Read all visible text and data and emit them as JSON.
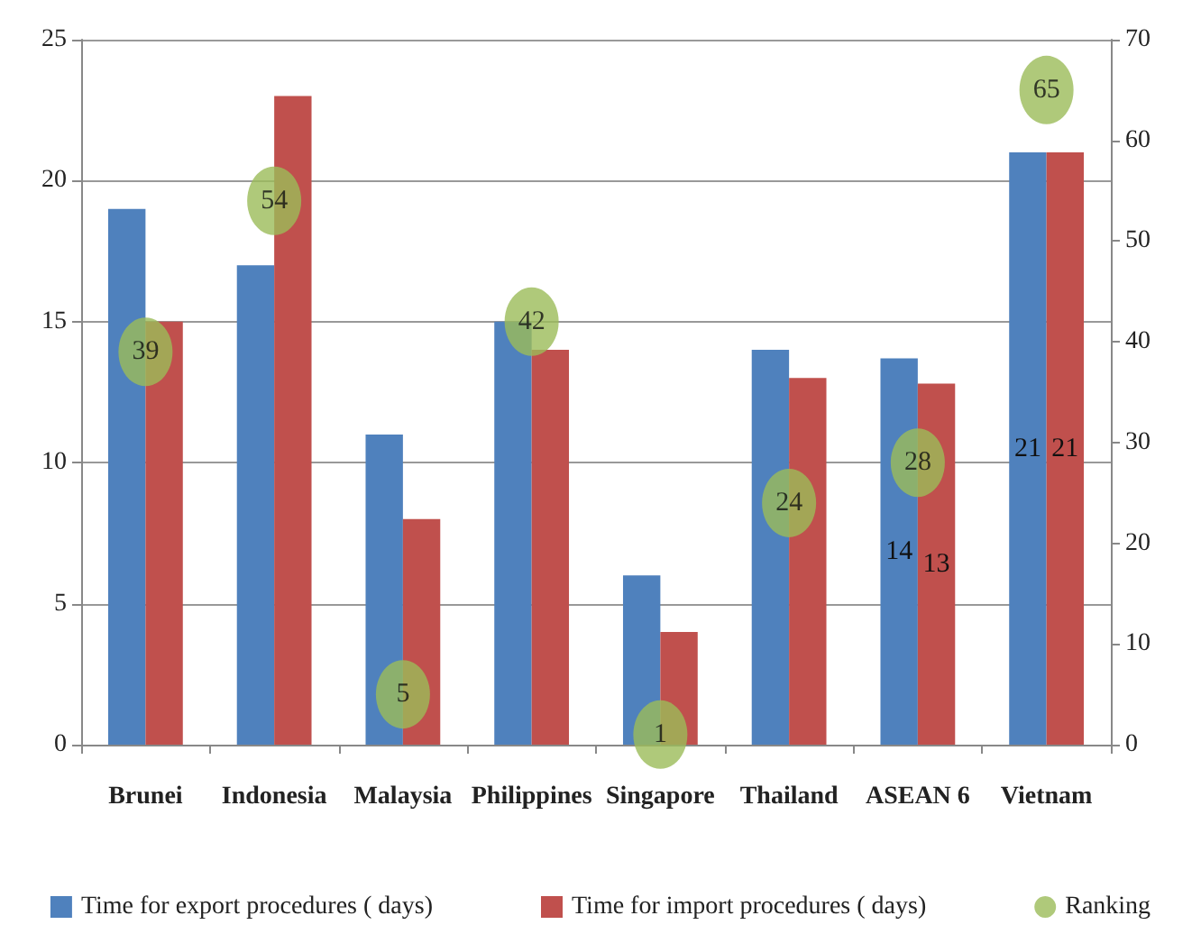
{
  "chart_data": {
    "type": "bar",
    "categories": [
      "Brunei",
      "Indonesia",
      "Malaysia",
      "Philippines",
      "Singapore",
      "Thailand",
      "ASEAN 6",
      "Vietnam"
    ],
    "series": [
      {
        "name": "Time for export procedures ( days)",
        "color": "#4f81bd",
        "values": [
          19,
          17,
          11,
          15,
          6,
          14,
          13.7,
          21
        ],
        "value_labels": [
          null,
          null,
          null,
          null,
          null,
          null,
          "14",
          "21"
        ]
      },
      {
        "name": "Time for import procedures ( days)",
        "color": "#c0504d",
        "values": [
          15,
          23,
          8,
          14,
          4,
          13,
          12.8,
          21
        ],
        "value_labels": [
          null,
          null,
          null,
          null,
          null,
          null,
          "13",
          "21"
        ]
      },
      {
        "name": "Ranking",
        "type": "scatter",
        "axis": "y2",
        "color": "#9bbb59",
        "values": [
          39,
          54,
          5,
          42,
          1,
          24,
          28,
          65
        ],
        "value_labels": [
          "39",
          "54",
          "5",
          "42",
          "1",
          "24",
          "28",
          "65"
        ]
      }
    ],
    "ylim": [
      0,
      25
    ],
    "yticks": [
      0,
      5,
      10,
      15,
      20,
      25
    ],
    "y2lim": [
      0,
      70
    ],
    "y2ticks": [
      0,
      10,
      20,
      30,
      40,
      50,
      60,
      70
    ],
    "grid": "y",
    "legend": "bottom",
    "marker": "circle"
  }
}
